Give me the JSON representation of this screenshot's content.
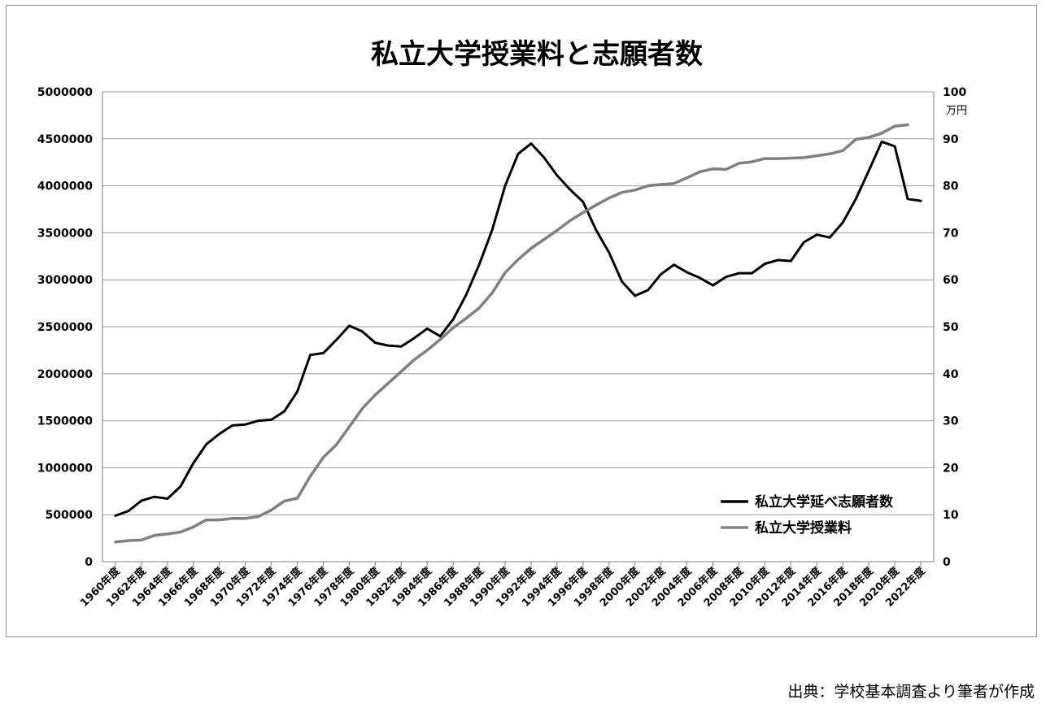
{
  "chart_data": {
    "type": "line",
    "title": "私立大学授業料と志願者数",
    "y2_unit": "万円",
    "x_labels": [
      "1960年度",
      "1962年度",
      "1964年度",
      "1966年度",
      "1968年度",
      "1970年度",
      "1972年度",
      "1974年度",
      "1976年度",
      "1978年度",
      "1980年度",
      "1982年度",
      "1984年度",
      "1986年度",
      "1988年度",
      "1990年度",
      "1992年度",
      "1994年度",
      "1996年度",
      "1998年度",
      "2000年度",
      "2002年度",
      "2004年度",
      "2006年度",
      "2008年度",
      "2010年度",
      "2012年度",
      "2014年度",
      "2016年度",
      "2018年度",
      "2020年度",
      "2022年度"
    ],
    "x": [
      1960,
      1961,
      1962,
      1963,
      1964,
      1965,
      1966,
      1967,
      1968,
      1969,
      1970,
      1971,
      1972,
      1973,
      1974,
      1975,
      1976,
      1977,
      1978,
      1979,
      1980,
      1981,
      1982,
      1983,
      1984,
      1985,
      1986,
      1987,
      1988,
      1989,
      1990,
      1991,
      1992,
      1993,
      1994,
      1995,
      1996,
      1997,
      1998,
      1999,
      2000,
      2001,
      2002,
      2003,
      2004,
      2005,
      2006,
      2007,
      2008,
      2009,
      2010,
      2011,
      2012,
      2013,
      2014,
      2015,
      2016,
      2017,
      2018,
      2019,
      2020,
      2021,
      2022
    ],
    "ylim": [
      0,
      5000000
    ],
    "yticks": [
      "0",
      "500000",
      "1000000",
      "1500000",
      "2000000",
      "2500000",
      "3000000",
      "3500000",
      "4000000",
      "4500000",
      "5000000"
    ],
    "y2lim": [
      0,
      100
    ],
    "y2ticks": [
      "0",
      "10",
      "20",
      "30",
      "40",
      "50",
      "60",
      "70",
      "80",
      "90",
      "100"
    ],
    "grid": true,
    "legend_position": "bottom-right",
    "series": [
      {
        "name": "私立大学延べ志願者数",
        "axis": "left",
        "color": "#000000",
        "values": [
          490000,
          540000,
          650000,
          690000,
          670000,
          800000,
          1050000,
          1250000,
          1360000,
          1450000,
          1460000,
          1500000,
          1510000,
          1600000,
          1810000,
          2200000,
          2220000,
          2360000,
          2510000,
          2450000,
          2330000,
          2300000,
          2290000,
          2380000,
          2480000,
          2400000,
          2580000,
          2840000,
          3160000,
          3530000,
          4000000,
          4340000,
          4450000,
          4300000,
          4110000,
          3960000,
          3830000,
          3530000,
          3290000,
          2980000,
          2830000,
          2890000,
          3060000,
          3160000,
          3080000,
          3020000,
          2940000,
          3030000,
          3070000,
          3070000,
          3170000,
          3210000,
          3200000,
          3400000,
          3480000,
          3450000,
          3610000,
          3860000,
          4160000,
          4470000,
          4420000,
          3860000,
          3840000
        ]
      },
      {
        "name": "私立大学授業料",
        "axis": "right",
        "color": "#808080",
        "values": [
          4.2,
          4.5,
          4.6,
          5.6,
          5.9,
          6.3,
          7.4,
          8.9,
          8.9,
          9.2,
          9.2,
          9.6,
          11.0,
          12.9,
          13.5,
          18.2,
          22.2,
          24.9,
          28.7,
          32.6,
          35.5,
          38.0,
          40.5,
          43.0,
          45.0,
          47.3,
          49.8,
          51.8,
          54.0,
          57.2,
          61.5,
          64.3,
          66.7,
          68.6,
          70.5,
          72.6,
          74.3,
          75.9,
          77.4,
          78.6,
          79.1,
          80.0,
          80.3,
          80.5,
          81.7,
          83.0,
          83.6,
          83.5,
          84.8,
          85.1,
          85.8,
          85.8,
          85.9,
          86.0,
          86.4,
          86.8,
          87.5,
          89.9,
          90.3,
          91.2,
          92.7,
          93.0,
          null
        ]
      }
    ]
  },
  "source_note": "出典：学校基本調査より筆者が作成"
}
